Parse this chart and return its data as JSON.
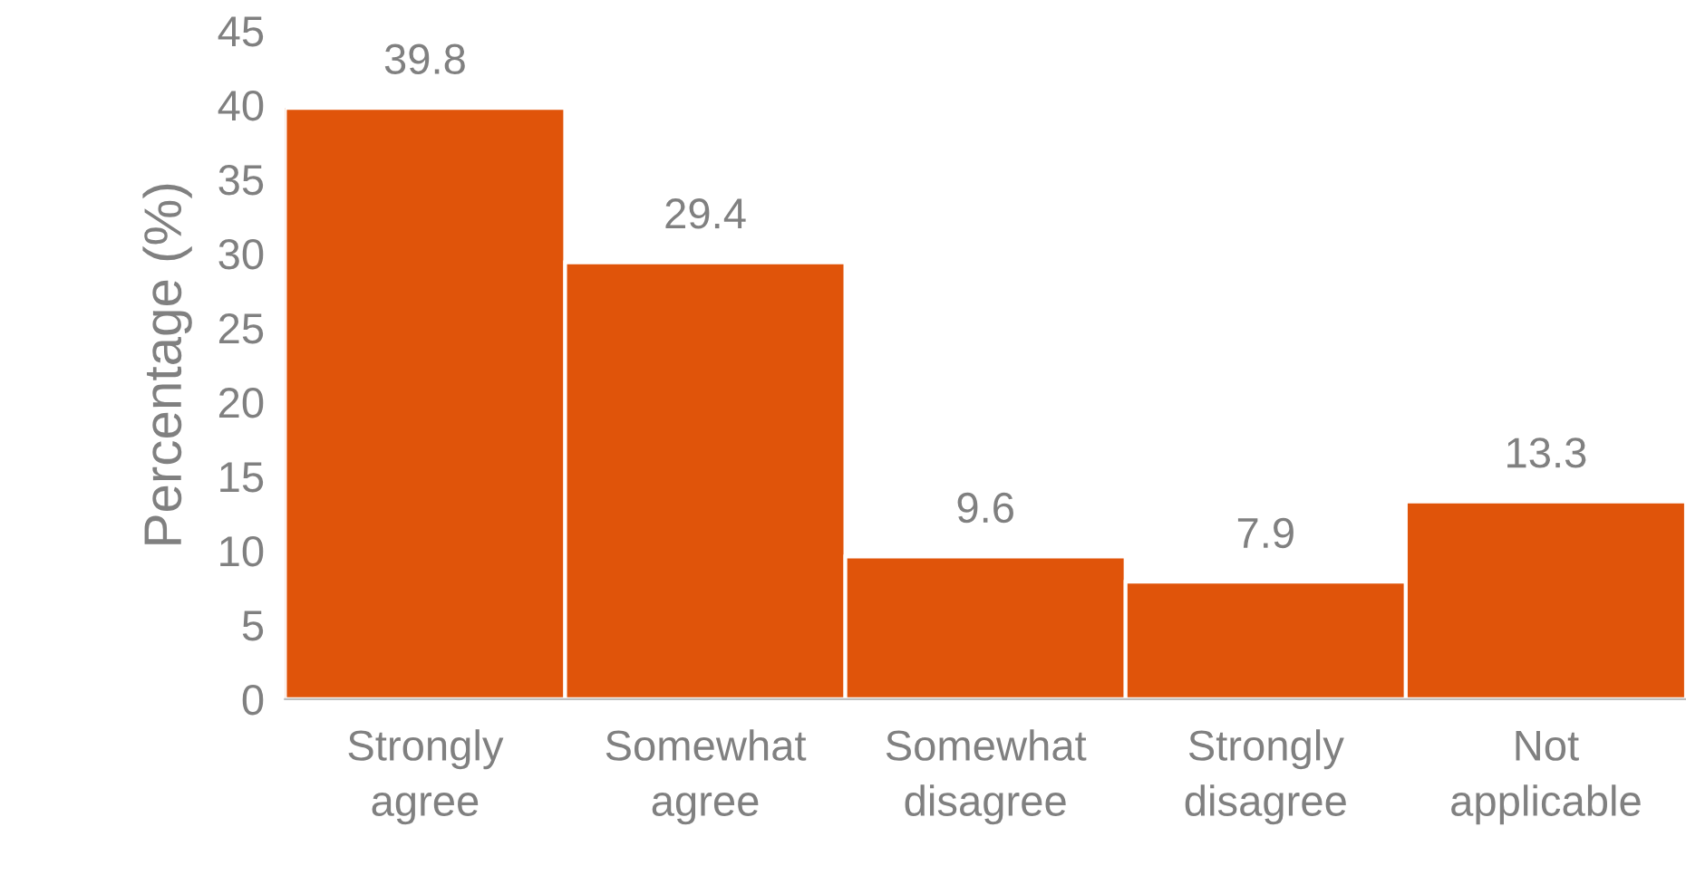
{
  "chart_data": {
    "type": "bar",
    "ylabel": "Percentage (%)",
    "categories": [
      "Strongly\nagree",
      "Somewhat\nagree",
      "Somewhat\ndisagree",
      "Strongly\ndisagree",
      "Not\napplicable"
    ],
    "values": [
      39.8,
      29.4,
      9.6,
      7.9,
      13.3
    ],
    "color": "#e0540a",
    "ylim": [
      0,
      45
    ],
    "yticks": [
      0,
      5,
      10,
      15,
      20,
      25,
      30,
      35,
      40,
      45
    ],
    "data_labels": true,
    "grid": false,
    "legend": false
  }
}
